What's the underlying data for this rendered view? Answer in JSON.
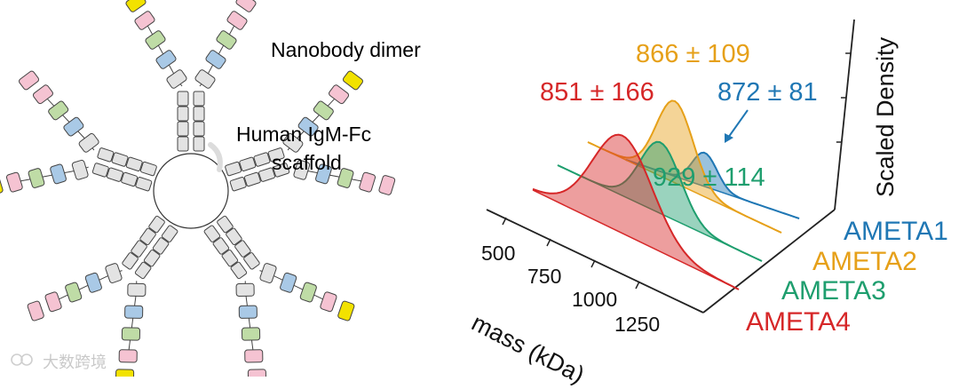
{
  "labels": {
    "nanobody_dimer": "Nanobody dimer",
    "scaffold_line1": "Human IgM-Fc",
    "scaffold_line2": "scaffold"
  },
  "chart_data": {
    "type": "area",
    "xlabel": "mass (kDa)",
    "ylabel": "Scaled Density",
    "x_ticks": [
      "500",
      "750",
      "1000",
      "1250"
    ],
    "series": [
      {
        "name": "AMETA1",
        "peak_label": "872 ± 81",
        "mean": 872,
        "sd": 81,
        "color": "#1f77b4"
      },
      {
        "name": "AMETA2",
        "peak_label": "866 ± 109",
        "mean": 866,
        "sd": 109,
        "color": "#e6a019"
      },
      {
        "name": "AMETA3",
        "peak_label": "929 ± 114",
        "mean": 929,
        "sd": 114,
        "color": "#1e9e6e"
      },
      {
        "name": "AMETA4",
        "peak_label": "851 ± 166",
        "mean": 851,
        "sd": 166,
        "color": "#d62728"
      }
    ]
  },
  "colors": {
    "nb_yellow": "#f2e200",
    "nb_blue": "#a9c9e6",
    "nb_green": "#bfdca6",
    "nb_pink": "#f5c3d2",
    "domain_grey": "#e3e3e3",
    "j_chain": "#dcdcdc"
  },
  "watermark": "大数跨境"
}
